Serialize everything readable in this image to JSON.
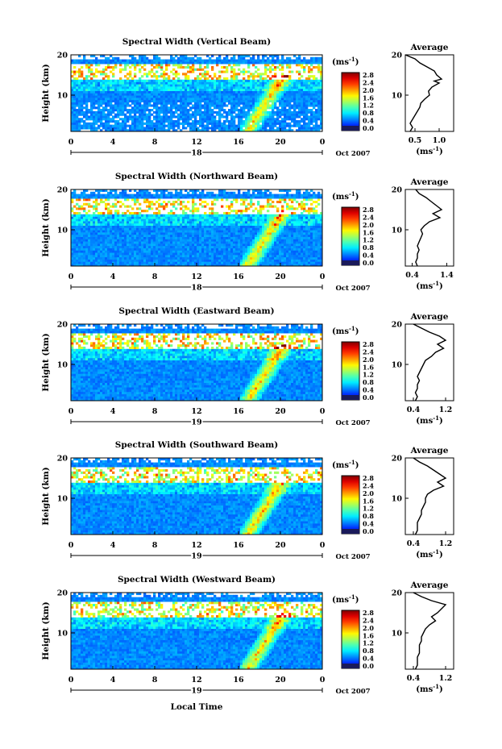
{
  "figure": {
    "x_axis_title": "Local Time",
    "y_axis_title": "Height (km)",
    "date_label": "Oct 2007",
    "colorbar_unit": "(ms",
    "colorbar_unit_exp": "-1",
    "colorbar_unit_close": ")",
    "colorbar_ticks": [
      "2.8",
      "2.4",
      "2.0",
      "1.6",
      "1.2",
      "0.8",
      "0.4",
      "0.0"
    ],
    "average_title": "Average",
    "average_unit": "(ms",
    "average_unit_exp": "-1",
    "average_unit_close": ")"
  },
  "chart_data": [
    {
      "type": "heatmap",
      "title": "Spectral Width (Vertical Beam)",
      "day_label": "18",
      "x_ticks": [
        "0",
        "4",
        "8",
        "12",
        "16",
        "20",
        "0"
      ],
      "xlim": [
        0,
        24
      ],
      "y_ticks": [
        "20",
        "10"
      ],
      "ylim": [
        1,
        20
      ],
      "colorbar_range": [
        0.0,
        3.0
      ],
      "average": {
        "x_ticks": [
          "0.5",
          "1.0"
        ],
        "xlim": [
          0.3,
          1.3
        ],
        "profile": [
          [
            0.4,
            1
          ],
          [
            0.45,
            2
          ],
          [
            0.4,
            3
          ],
          [
            0.45,
            4
          ],
          [
            0.5,
            5
          ],
          [
            0.55,
            6
          ],
          [
            0.6,
            7
          ],
          [
            0.62,
            8
          ],
          [
            0.7,
            9
          ],
          [
            0.8,
            10
          ],
          [
            0.78,
            11
          ],
          [
            0.85,
            12
          ],
          [
            1.0,
            13
          ],
          [
            0.9,
            13.5
          ],
          [
            1.05,
            14
          ],
          [
            0.95,
            15
          ],
          [
            0.9,
            16
          ],
          [
            0.75,
            17
          ],
          [
            0.6,
            18
          ],
          [
            0.5,
            19
          ],
          [
            0.3,
            20
          ]
        ]
      }
    },
    {
      "type": "heatmap",
      "title": "Spectral Width (Northward Beam)",
      "day_label": "18",
      "x_ticks": [
        "0",
        "4",
        "8",
        "12",
        "16",
        "20",
        "0"
      ],
      "xlim": [
        0,
        24
      ],
      "y_ticks": [
        "20",
        "10"
      ],
      "ylim": [
        1,
        20
      ],
      "colorbar_range": [
        0.0,
        3.0
      ],
      "average": {
        "x_ticks": [
          "0.4",
          "1.4"
        ],
        "xlim": [
          0.2,
          1.6
        ],
        "profile": [
          [
            0.55,
            1
          ],
          [
            0.5,
            2
          ],
          [
            0.55,
            3
          ],
          [
            0.55,
            4
          ],
          [
            0.6,
            5
          ],
          [
            0.55,
            6
          ],
          [
            0.6,
            7
          ],
          [
            0.65,
            8
          ],
          [
            0.7,
            9
          ],
          [
            0.65,
            10
          ],
          [
            0.75,
            11
          ],
          [
            0.9,
            12
          ],
          [
            1.2,
            13
          ],
          [
            1.0,
            14
          ],
          [
            1.25,
            15
          ],
          [
            1.1,
            16
          ],
          [
            0.95,
            17
          ],
          [
            0.8,
            18
          ],
          [
            0.6,
            19
          ],
          [
            0.5,
            20
          ]
        ]
      }
    },
    {
      "type": "heatmap",
      "title": "Spectral Width (Eastward Beam)",
      "day_label": "19",
      "x_ticks": [
        "0",
        "4",
        "8",
        "12",
        "16",
        "20",
        "0"
      ],
      "xlim": [
        0,
        24
      ],
      "y_ticks": [
        "20",
        "10"
      ],
      "ylim": [
        1,
        20
      ],
      "colorbar_range": [
        0.0,
        3.0
      ],
      "average": {
        "x_ticks": [
          "0.4",
          "1.2"
        ],
        "xlim": [
          0.2,
          1.4
        ],
        "profile": [
          [
            0.45,
            1
          ],
          [
            0.5,
            2
          ],
          [
            0.45,
            3
          ],
          [
            0.5,
            4
          ],
          [
            0.5,
            5
          ],
          [
            0.55,
            6
          ],
          [
            0.5,
            7
          ],
          [
            0.55,
            8
          ],
          [
            0.6,
            9
          ],
          [
            0.65,
            10
          ],
          [
            0.7,
            11
          ],
          [
            0.85,
            12
          ],
          [
            0.95,
            13
          ],
          [
            1.15,
            14
          ],
          [
            1.0,
            15
          ],
          [
            1.2,
            16
          ],
          [
            1.05,
            17
          ],
          [
            0.8,
            18
          ],
          [
            0.6,
            19
          ],
          [
            0.4,
            20
          ]
        ]
      }
    },
    {
      "type": "heatmap",
      "title": "Spectral Width (Southward Beam)",
      "day_label": "19",
      "x_ticks": [
        "0",
        "4",
        "8",
        "12",
        "16",
        "20",
        "0"
      ],
      "xlim": [
        0,
        24
      ],
      "y_ticks": [
        "20",
        "10"
      ],
      "ylim": [
        1,
        20
      ],
      "colorbar_range": [
        0.0,
        3.0
      ],
      "average": {
        "x_ticks": [
          "0.4",
          "1.2"
        ],
        "xlim": [
          0.2,
          1.4
        ],
        "profile": [
          [
            0.45,
            1
          ],
          [
            0.5,
            2
          ],
          [
            0.5,
            3
          ],
          [
            0.5,
            4
          ],
          [
            0.55,
            5
          ],
          [
            0.6,
            6
          ],
          [
            0.6,
            7
          ],
          [
            0.65,
            8
          ],
          [
            0.7,
            9
          ],
          [
            0.7,
            10
          ],
          [
            0.75,
            11
          ],
          [
            0.9,
            12
          ],
          [
            1.15,
            13
          ],
          [
            1.0,
            14
          ],
          [
            1.2,
            15
          ],
          [
            1.05,
            16
          ],
          [
            0.9,
            17
          ],
          [
            0.75,
            18
          ],
          [
            0.55,
            19
          ],
          [
            0.4,
            20
          ]
        ]
      }
    },
    {
      "type": "heatmap",
      "title": "Spectral Width (Westward Beam)",
      "day_label": "19",
      "x_ticks": [
        "0",
        "4",
        "8",
        "12",
        "16",
        "20",
        "0"
      ],
      "xlim": [
        0,
        24
      ],
      "y_ticks": [
        "20",
        "10"
      ],
      "ylim": [
        1,
        20
      ],
      "colorbar_range": [
        0.0,
        3.0
      ],
      "average": {
        "x_ticks": [
          "0.4",
          "1.2"
        ],
        "xlim": [
          0.2,
          1.4
        ],
        "profile": [
          [
            0.45,
            1
          ],
          [
            0.5,
            2
          ],
          [
            0.5,
            3
          ],
          [
            0.5,
            4
          ],
          [
            0.55,
            5
          ],
          [
            0.55,
            6
          ],
          [
            0.55,
            7
          ],
          [
            0.6,
            8
          ],
          [
            0.6,
            9
          ],
          [
            0.65,
            10
          ],
          [
            0.7,
            11
          ],
          [
            0.8,
            12
          ],
          [
            0.95,
            13
          ],
          [
            0.85,
            14
          ],
          [
            1.0,
            15
          ],
          [
            1.1,
            16
          ],
          [
            1.2,
            17
          ],
          [
            0.85,
            18
          ],
          [
            0.6,
            19
          ],
          [
            0.4,
            20
          ]
        ]
      }
    }
  ]
}
